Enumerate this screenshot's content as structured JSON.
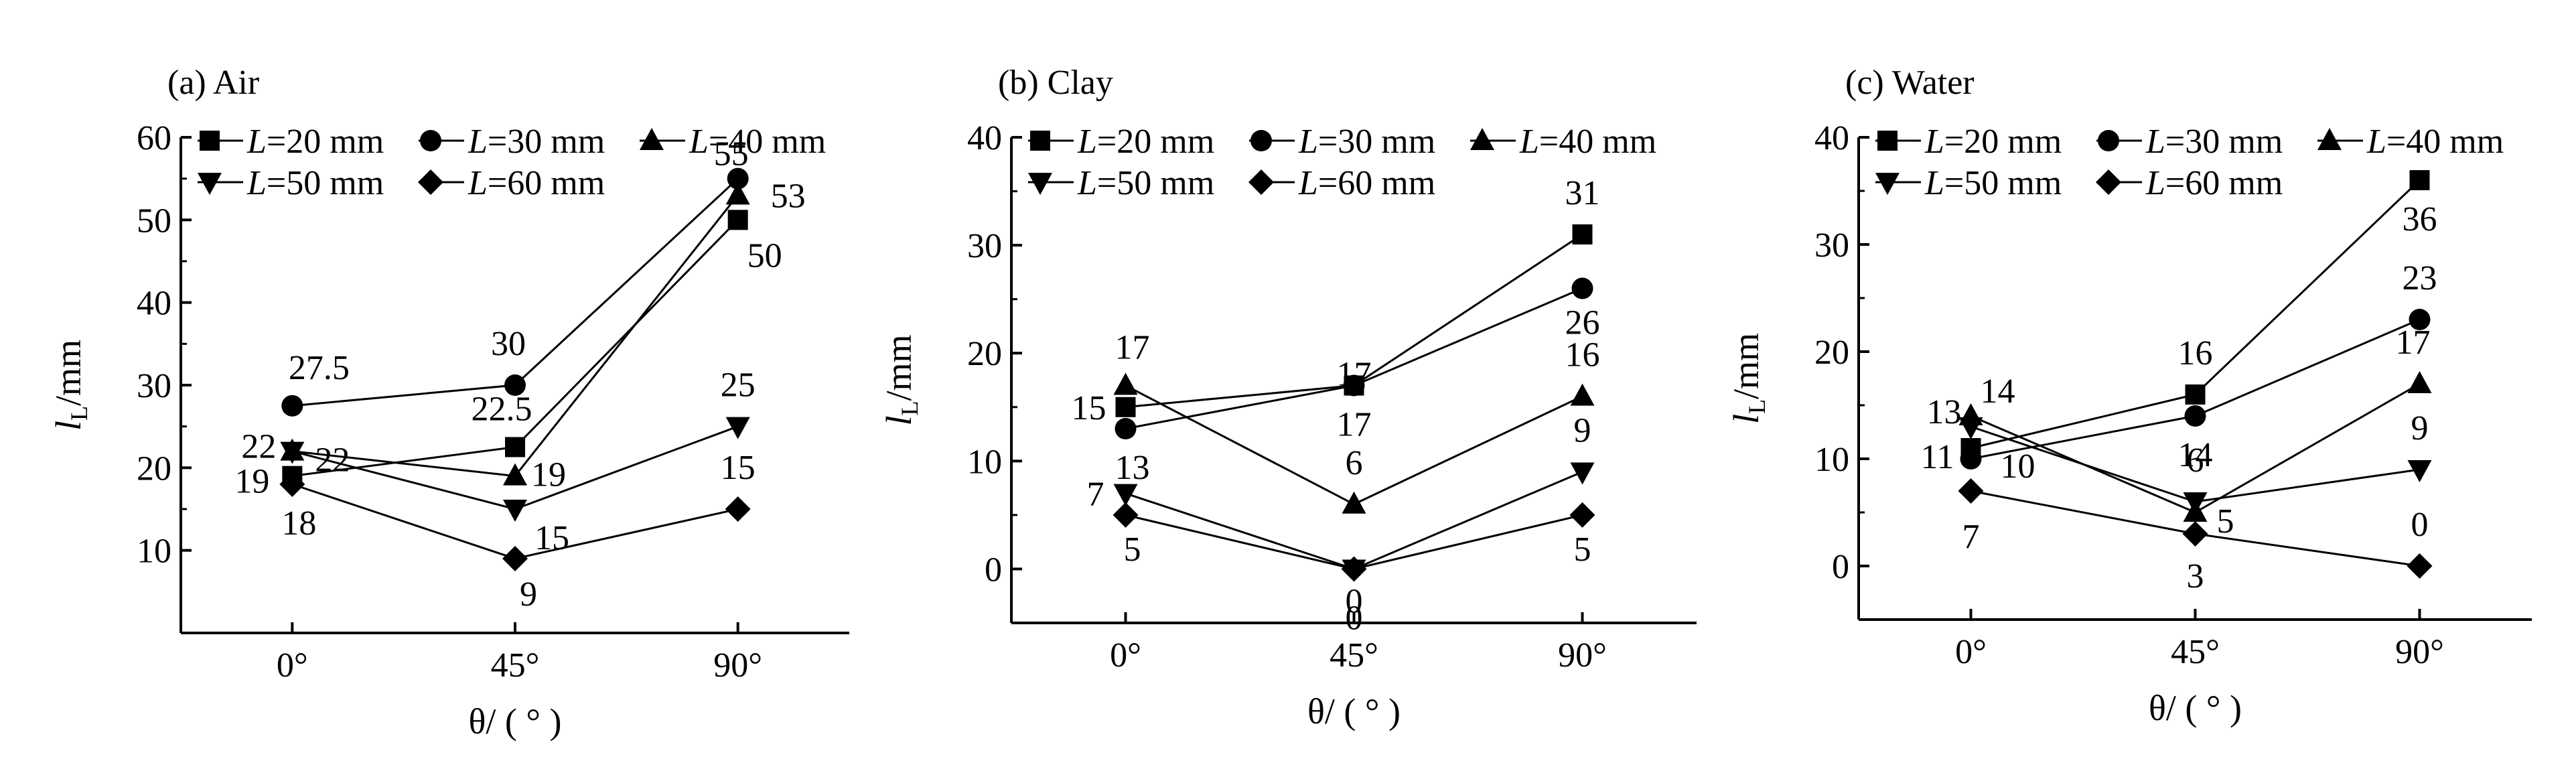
{
  "chart_data": [
    {
      "type": "line",
      "title": "(a) Air",
      "xlabel": "θ/ ( ° )",
      "ylabel": "lL/mm",
      "ylabel_main": "l",
      "ylabel_sub": "L",
      "ylabel_unit": "/mm",
      "categories": [
        "0°",
        "45°",
        "90°"
      ],
      "ylim": [
        0,
        60
      ],
      "yticks": [
        "10",
        "20",
        "30",
        "40",
        "50",
        "60"
      ],
      "yticks_values": [
        10,
        20,
        30,
        40,
        50,
        60
      ],
      "grid": false,
      "legend_position": "top",
      "series": [
        {
          "name": "L=20 mm",
          "name_var": "L",
          "name_val": "=20 mm",
          "marker": "square",
          "values": [
            19,
            22.5,
            50
          ],
          "labels": [
            "19",
            "22.5",
            "50"
          ]
        },
        {
          "name": "L=30 mm",
          "name_var": "L",
          "name_val": "=30 mm",
          "marker": "circle",
          "values": [
            27.5,
            30,
            55
          ],
          "labels": [
            "27.5",
            "30",
            "55"
          ]
        },
        {
          "name": "L=40 mm",
          "name_var": "L",
          "name_val": "=40 mm",
          "marker": "triangle-up",
          "values": [
            22,
            19,
            53
          ],
          "labels": [
            "22",
            "19",
            "53"
          ]
        },
        {
          "name": "L=50 mm",
          "name_var": "L",
          "name_val": "=50 mm",
          "marker": "triangle-down",
          "values": [
            22,
            15,
            25
          ],
          "labels": [
            "22",
            "15",
            "25"
          ]
        },
        {
          "name": "L=60 mm",
          "name_var": "L",
          "name_val": "=60 mm",
          "marker": "diamond",
          "values": [
            18,
            9,
            15
          ],
          "labels": [
            "18",
            "9",
            "15"
          ]
        }
      ]
    },
    {
      "type": "line",
      "title": "(b) Clay",
      "xlabel": "θ/ ( ° )",
      "ylabel": "lL/mm",
      "ylabel_main": "l",
      "ylabel_sub": "L",
      "ylabel_unit": "/mm",
      "categories": [
        "0°",
        "45°",
        "90°"
      ],
      "ylim": [
        -5,
        40
      ],
      "yticks": [
        "0",
        "10",
        "20",
        "30",
        "40"
      ],
      "yticks_values": [
        0,
        10,
        20,
        30,
        40
      ],
      "grid": false,
      "legend_position": "top",
      "series": [
        {
          "name": "L=20 mm",
          "name_var": "L",
          "name_val": "=20 mm",
          "marker": "square",
          "values": [
            15,
            17,
            31
          ],
          "labels": [
            "15",
            "17",
            "31"
          ]
        },
        {
          "name": "L=30 mm",
          "name_var": "L",
          "name_val": "=30 mm",
          "marker": "circle",
          "values": [
            13,
            17,
            26
          ],
          "labels": [
            "13",
            "17",
            "26"
          ]
        },
        {
          "name": "L=40 mm",
          "name_var": "L",
          "name_val": "=40 mm",
          "marker": "triangle-up",
          "values": [
            17,
            6,
            16
          ],
          "labels": [
            "17",
            "6",
            "16"
          ]
        },
        {
          "name": "L=50 mm",
          "name_var": "L",
          "name_val": "=50 mm",
          "marker": "triangle-down",
          "values": [
            7,
            0,
            9
          ],
          "labels": [
            "7",
            "0",
            "9"
          ]
        },
        {
          "name": "L=60 mm",
          "name_var": "L",
          "name_val": "=60 mm",
          "marker": "diamond",
          "values": [
            5,
            0,
            5
          ],
          "labels": [
            "5",
            "0",
            "5"
          ]
        }
      ]
    },
    {
      "type": "line",
      "title": "(c) Water",
      "xlabel": "θ/ ( ° )",
      "ylabel": "lL/mm",
      "ylabel_main": "l",
      "ylabel_sub": "L",
      "ylabel_unit": "/mm",
      "categories": [
        "0°",
        "45°",
        "90°"
      ],
      "ylim": [
        -5,
        40
      ],
      "yticks": [
        "0",
        "10",
        "20",
        "30",
        "40"
      ],
      "yticks_values": [
        0,
        10,
        20,
        30,
        40
      ],
      "grid": false,
      "legend_position": "top",
      "series": [
        {
          "name": "L=20 mm",
          "name_var": "L",
          "name_val": "=20 mm",
          "marker": "square",
          "values": [
            11,
            16,
            36
          ],
          "labels": [
            "11",
            "16",
            "36"
          ]
        },
        {
          "name": "L=30 mm",
          "name_var": "L",
          "name_val": "=30 mm",
          "marker": "circle",
          "values": [
            10,
            14,
            23
          ],
          "labels": [
            "",
            "14",
            "23"
          ]
        },
        {
          "name": "L=40 mm",
          "name_var": "L",
          "name_val": "=40 mm",
          "marker": "triangle-up",
          "values": [
            14,
            5,
            17
          ],
          "labels": [
            "14",
            "5",
            "17"
          ]
        },
        {
          "name": "L=50 mm",
          "name_var": "L",
          "name_val": "=50 mm",
          "marker": "triangle-down",
          "values": [
            13,
            6,
            9
          ],
          "labels": [
            "13",
            "6",
            "9"
          ]
        },
        {
          "name": "L=60 mm",
          "name_var": "L",
          "name_val": "=60 mm",
          "marker": "diamond",
          "values": [
            7,
            3,
            0
          ],
          "labels": [
            "7",
            "3",
            "0"
          ]
        }
      ],
      "annotations": [
        {
          "text": "10",
          "category": "0°",
          "series": "L=60 mm"
        }
      ]
    }
  ]
}
